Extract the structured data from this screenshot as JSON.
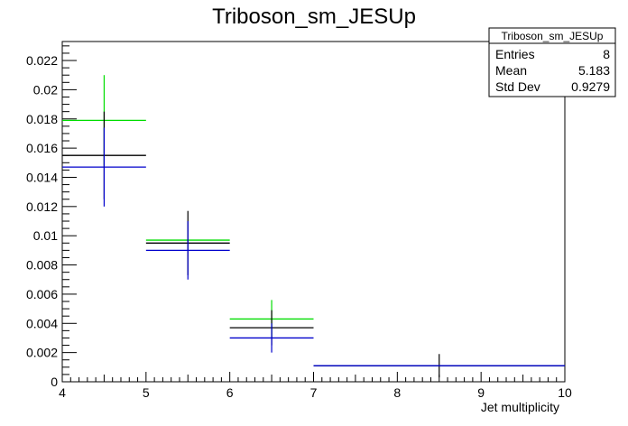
{
  "title": "Triboson_sm_JESUp",
  "stats": {
    "name": "Triboson_sm_JESUp",
    "rows": [
      {
        "label": "Entries",
        "value": "8"
      },
      {
        "label": "Mean",
        "value": "5.183"
      },
      {
        "label": "Std Dev",
        "value": "0.9279"
      }
    ]
  },
  "chart_data": {
    "type": "line",
    "title": "Triboson_sm_JESUp",
    "xlabel": "Jet multiplicity",
    "ylabel": "",
    "xlim": [
      4,
      10
    ],
    "ylim": [
      0,
      0.0233
    ],
    "x_ticks": [
      "4",
      "5",
      "6",
      "7",
      "8",
      "9",
      "10"
    ],
    "y_ticks": [
      "0",
      "0.002",
      "0.004",
      "0.006",
      "0.008",
      "0.01",
      "0.012",
      "0.014",
      "0.016",
      "0.018",
      "0.02",
      "0.022"
    ],
    "grid": false,
    "bins": [
      {
        "low": 4,
        "high": 5
      },
      {
        "low": 5,
        "high": 6
      },
      {
        "low": 6,
        "high": 7
      },
      {
        "low": 7,
        "high": 10
      }
    ],
    "series": [
      {
        "color": "#00dd00",
        "values": [
          0.0179,
          0.0097,
          0.0043,
          0.0011
        ],
        "errors": [
          0.0031,
          0.0,
          0.0013,
          0.0
        ]
      },
      {
        "color": "#000000",
        "values": [
          0.0155,
          0.0095,
          0.0037,
          0.0011
        ],
        "errors": [
          0.003,
          0.0022,
          0.0012,
          0.0008
        ]
      },
      {
        "color": "#0000cc",
        "values": [
          0.0147,
          0.009,
          0.003,
          0.0011
        ],
        "errors": [
          0.0027,
          0.002,
          0.001,
          0.0
        ]
      }
    ]
  }
}
